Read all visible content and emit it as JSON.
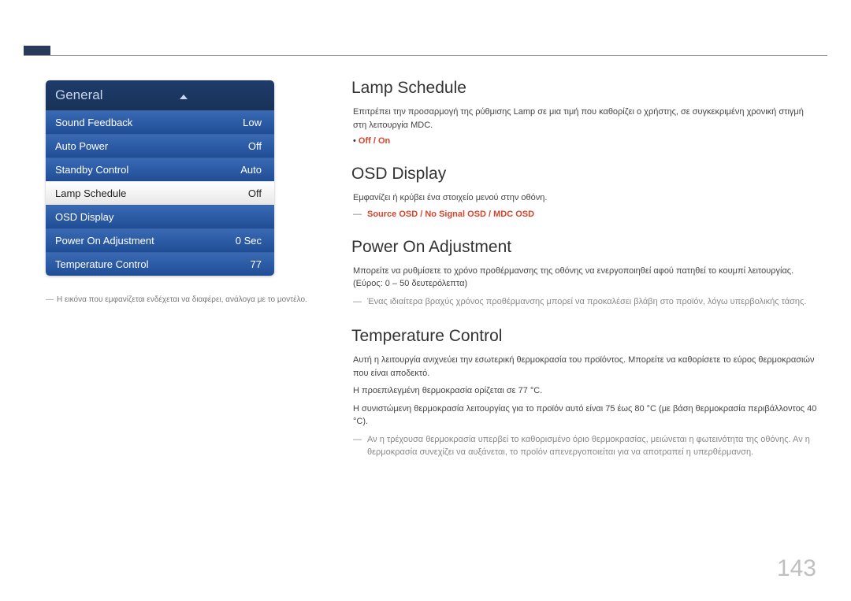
{
  "panel": {
    "title": "General",
    "items": [
      {
        "label": "Sound Feedback",
        "value": "Low",
        "selected": false
      },
      {
        "label": "Auto Power",
        "value": "Off",
        "selected": false
      },
      {
        "label": "Standby Control",
        "value": "Auto",
        "selected": false
      },
      {
        "label": "Lamp Schedule",
        "value": "Off",
        "selected": true
      },
      {
        "label": "OSD Display",
        "value": "",
        "selected": false
      },
      {
        "label": "Power On Adjustment",
        "value": "0 Sec",
        "selected": false
      },
      {
        "label": "Temperature Control",
        "value": "77",
        "selected": false
      }
    ],
    "note": "Η εικόνα που εμφανίζεται ενδέχεται να διαφέρει, ανάλογα με το μοντέλο."
  },
  "sections": {
    "lamp": {
      "title": "Lamp Schedule",
      "desc": "Επιτρέπει την προσαρμογή της ρύθμισης Lamp σε μια τιμή που καθορίζει ο χρήστης, σε συγκεκριμένη χρονική στιγμή στη λειτουργία MDC.",
      "bullet": "Off / On"
    },
    "osd": {
      "title": "OSD Display",
      "desc": "Εμφανίζει ή κρύβει ένα στοιχείο μενού στην οθόνη.",
      "dash": "Source OSD / No Signal OSD / MDC OSD"
    },
    "poweron": {
      "title": "Power On Adjustment",
      "desc": "Μπορείτε να ρυθμίσετε το χρόνο προθέρμανσης της οθόνης να ενεργοποιηθεί αφού πατηθεί το κουμπί λειτουργίας. (Εύρος: 0 – 50 δευτερόλεπτα)",
      "note": "Ένας ιδιαίτερα βραχύς χρόνος προθέρμανσης μπορεί να προκαλέσει βλάβη στο προϊόν, λόγω υπερβολικής τάσης."
    },
    "temp": {
      "title": "Temperature Control",
      "p1": "Αυτή η λειτουργία ανιχνεύει την εσωτερική θερμοκρασία του προϊόντος. Μπορείτε να καθορίσετε το εύρος θερμοκρασιών που είναι αποδεκτό.",
      "p2": "Η προεπιλεγμένη θερμοκρασία ορίζεται σε 77 °C.",
      "p3": "Η συνιστώμενη θερμοκρασία λειτουργίας για το προϊόν αυτό είναι 75 έως 80 °C (με βάση θερμοκρασία περιβάλλοντος 40 °C).",
      "note": "Αν η τρέχουσα θερμοκρασία υπερβεί το καθορισμένο όριο θερμοκρασίας, μειώνεται η φωτεινότητα της οθόνης. Αν η θερμοκρασία συνεχίζει να αυξάνεται, το προϊόν απενεργοποιείται για να αποτραπεί η υπερθέρμανση."
    }
  },
  "page_number": "143"
}
